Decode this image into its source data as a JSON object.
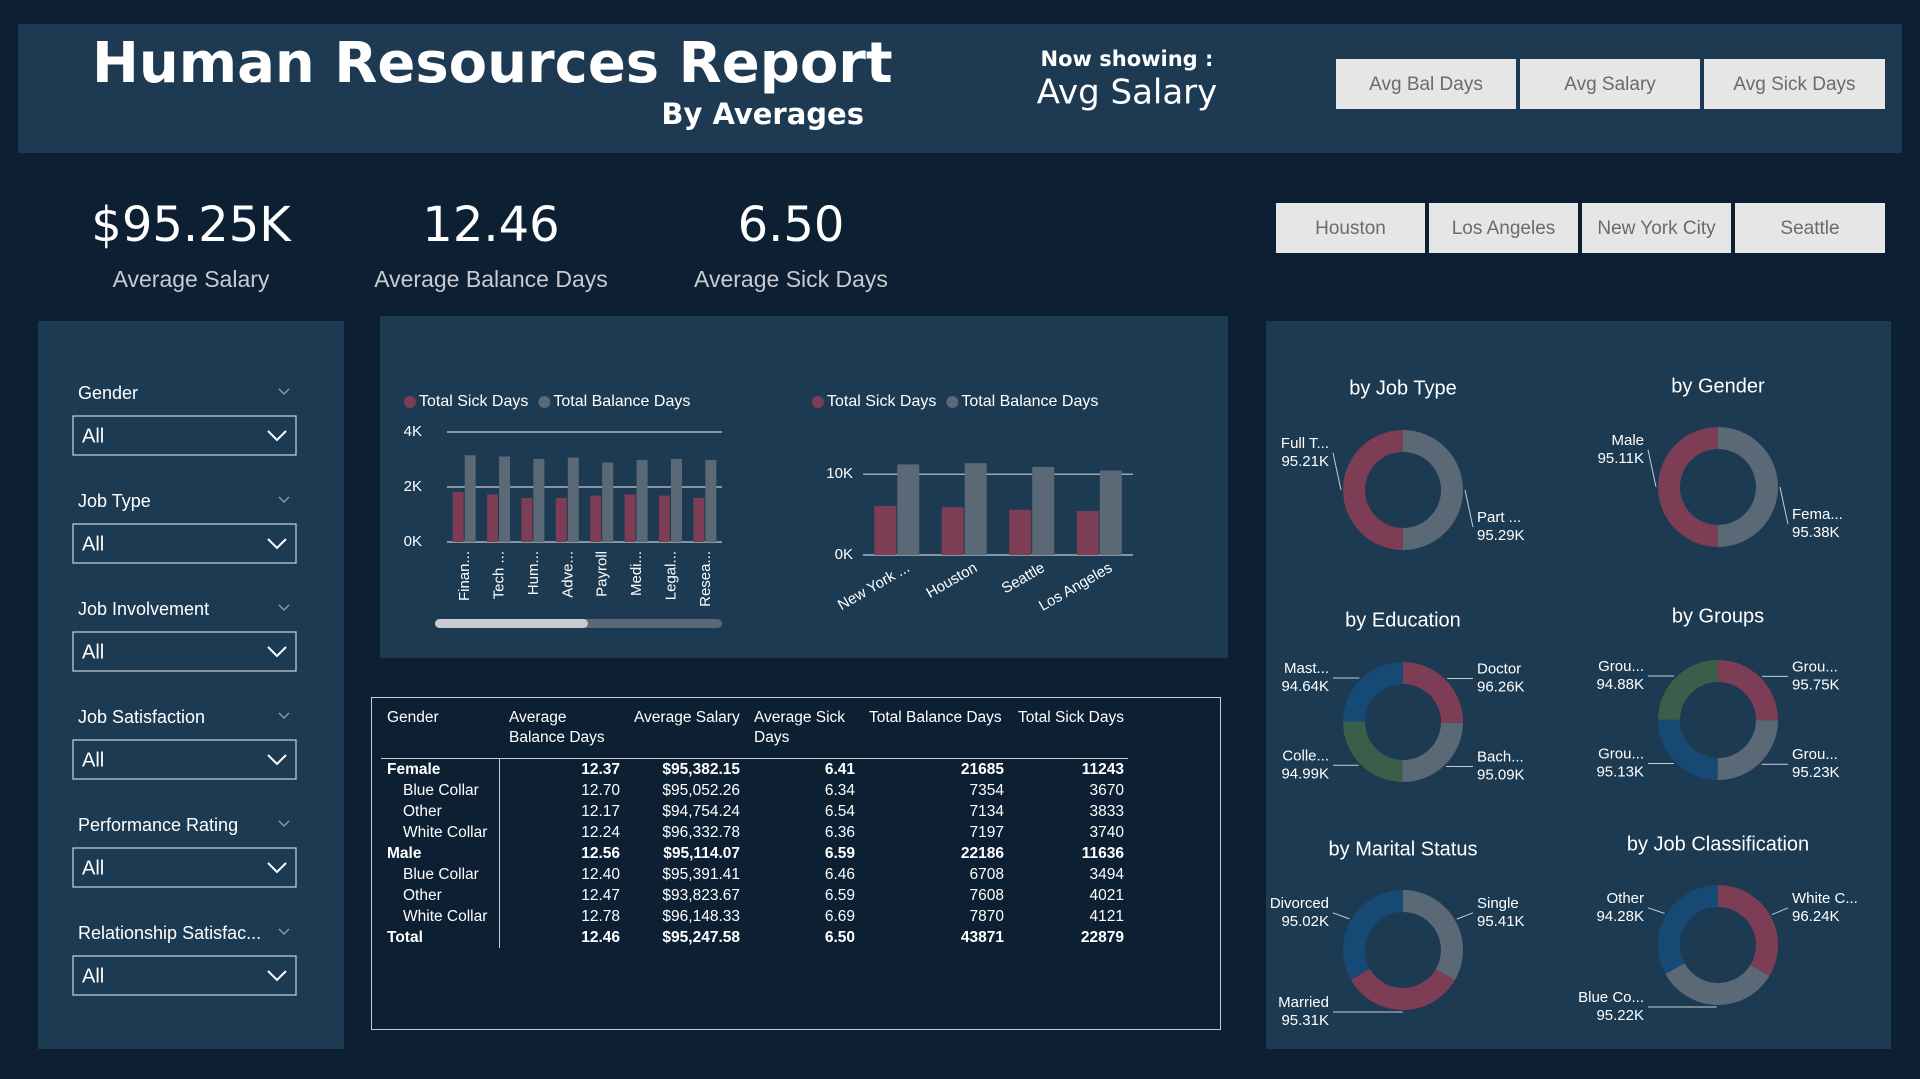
{
  "header": {
    "title": "Human Resources Report",
    "subtitle": "By Averages",
    "now_showing_label": "Now showing :",
    "now_showing_value": "Avg Salary"
  },
  "view_buttons": [
    "Avg Bal Days",
    "Avg Salary",
    "Avg Sick Days"
  ],
  "city_buttons": [
    "Houston",
    "Los Angeles",
    "New York City",
    "Seattle"
  ],
  "kpis": [
    {
      "value": "$95.25K",
      "label": "Average Salary"
    },
    {
      "value": "12.46",
      "label": "Average Balance Days"
    },
    {
      "value": "6.50",
      "label": "Average Sick Days"
    }
  ],
  "filters": [
    {
      "label": "Gender",
      "value": "All"
    },
    {
      "label": "Job Type",
      "value": "All"
    },
    {
      "label": "Job Involvement",
      "value": "All"
    },
    {
      "label": "Job Satisfaction",
      "value": "All"
    },
    {
      "label": "Performance Rating",
      "value": "All"
    },
    {
      "label": "Relationship Satisfac...",
      "value": "All"
    }
  ],
  "chart_data": [
    {
      "type": "bar",
      "categories": [
        "Finan...",
        "Tech ...",
        "Hum...",
        "Adve...",
        "Payroll",
        "Medi...",
        "Legal...",
        "Resea..."
      ],
      "series": [
        {
          "name": "Total Sick Days",
          "color": "#7d3d55",
          "values": [
            1820,
            1730,
            1600,
            1600,
            1690,
            1730,
            1690,
            1600
          ]
        },
        {
          "name": "Total Balance Days",
          "color": "#5b6876",
          "values": [
            3155,
            3110,
            3020,
            3070,
            2890,
            2980,
            3020,
            2980
          ]
        }
      ],
      "ylim": [
        0,
        4000
      ],
      "yticks": [
        {
          "value": 0,
          "label": "0K"
        },
        {
          "value": 2000,
          "label": "2K"
        },
        {
          "value": 4000,
          "label": "4K"
        }
      ],
      "grid": true
    },
    {
      "type": "bar",
      "categories": [
        "New York ...",
        "Houston",
        "Seattle",
        "Los Angeles"
      ],
      "series": [
        {
          "name": "Total Sick Days",
          "color": "#7d3d55",
          "values": [
            6060,
            5910,
            5610,
            5450
          ]
        },
        {
          "name": "Total Balance Days",
          "color": "#5b6876",
          "values": [
            11210,
            11360,
            10900,
            10450
          ]
        }
      ],
      "ylim": [
        0,
        12000
      ],
      "yticks": [
        {
          "value": 0,
          "label": "0K"
        },
        {
          "value": 10000,
          "label": "10K"
        }
      ],
      "grid": true
    },
    {
      "type": "donut",
      "title": "by Job Type",
      "categories": [
        "Part ...",
        "Full T..."
      ],
      "values": [
        95290,
        95210
      ],
      "value_labels": [
        "95.29K",
        "95.21K"
      ],
      "colors": [
        "#5b6876",
        "#7d3d55"
      ]
    },
    {
      "type": "donut",
      "title": "by Gender",
      "categories": [
        "Fema...",
        "Male"
      ],
      "values": [
        95380,
        95110
      ],
      "value_labels": [
        "95.38K",
        "95.11K"
      ],
      "colors": [
        "#5b6876",
        "#7d3d55"
      ]
    },
    {
      "type": "donut",
      "title": "by Education",
      "categories": [
        "Doctor",
        "Bach...",
        "Colle...",
        "Mast..."
      ],
      "values": [
        96260,
        95090,
        94990,
        94640
      ],
      "value_labels": [
        "96.26K",
        "95.09K",
        "94.99K",
        "94.64K"
      ],
      "colors": [
        "#7d3d55",
        "#5b6876",
        "#3b5e4a",
        "#164a74"
      ]
    },
    {
      "type": "donut",
      "title": "by Groups",
      "categories": [
        "Grou...",
        "Grou...",
        "Grou...",
        "Grou..."
      ],
      "values": [
        95750,
        95230,
        95130,
        94880
      ],
      "value_labels": [
        "95.75K",
        "95.23K",
        "95.13K",
        "94.88K"
      ],
      "colors": [
        "#7d3d55",
        "#5b6876",
        "#164a74",
        "#3b5e4a"
      ]
    },
    {
      "type": "donut",
      "title": "by Marital Status",
      "categories": [
        "Single",
        "Married",
        "Divorced"
      ],
      "values": [
        95410,
        95310,
        95020
      ],
      "value_labels": [
        "95.41K",
        "95.31K",
        "95.02K"
      ],
      "colors": [
        "#5b6876",
        "#7d3d55",
        "#164a74"
      ]
    },
    {
      "type": "donut",
      "title": "by Job Classification",
      "categories": [
        "White C...",
        "Blue Co...",
        "Other"
      ],
      "values": [
        96240,
        95220,
        94280
      ],
      "value_labels": [
        "96.24K",
        "95.22K",
        "94.28K"
      ],
      "colors": [
        "#7d3d55",
        "#5b6876",
        "#164a74"
      ]
    }
  ],
  "table": {
    "columns": [
      "Gender",
      "Average Balance Days",
      "Average Salary",
      "Average Sick Days",
      "Total Balance Days",
      "Total Sick Days"
    ],
    "groups": [
      {
        "name": "Female",
        "values": [
          "12.37",
          "$95,382.15",
          "6.41",
          "21685",
          "11243"
        ],
        "rows": [
          {
            "name": "Blue Collar",
            "values": [
              "12.70",
              "$95,052.26",
              "6.34",
              "7354",
              "3670"
            ]
          },
          {
            "name": "Other",
            "values": [
              "12.17",
              "$94,754.24",
              "6.54",
              "7134",
              "3833"
            ]
          },
          {
            "name": "White Collar",
            "values": [
              "12.24",
              "$96,332.78",
              "6.36",
              "7197",
              "3740"
            ]
          }
        ]
      },
      {
        "name": "Male",
        "values": [
          "12.56",
          "$95,114.07",
          "6.59",
          "22186",
          "11636"
        ],
        "rows": [
          {
            "name": "Blue Collar",
            "values": [
              "12.40",
              "$95,391.41",
              "6.46",
              "6708",
              "3494"
            ]
          },
          {
            "name": "Other",
            "values": [
              "12.47",
              "$93,823.67",
              "6.59",
              "7608",
              "4021"
            ]
          },
          {
            "name": "White Collar",
            "values": [
              "12.78",
              "$96,148.33",
              "6.69",
              "7870",
              "4121"
            ]
          }
        ]
      }
    ],
    "total": {
      "name": "Total",
      "values": [
        "12.46",
        "$95,247.58",
        "6.50",
        "43871",
        "22879"
      ]
    }
  }
}
